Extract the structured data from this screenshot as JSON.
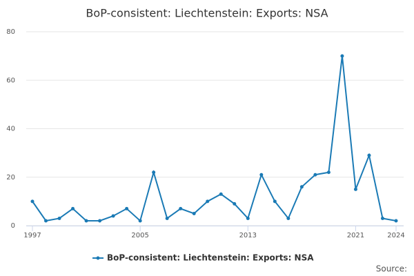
{
  "chart_data": {
    "type": "line",
    "title": "BoP-consistent: Liechtenstein: Exports: NSA",
    "x": [
      1997,
      1998,
      1999,
      2000,
      2001,
      2002,
      2003,
      2004,
      2005,
      2006,
      2007,
      2008,
      2009,
      2010,
      2011,
      2012,
      2013,
      2014,
      2015,
      2016,
      2017,
      2018,
      2019,
      2020,
      2021,
      2022,
      2023,
      2024
    ],
    "series": [
      {
        "name": "BoP-consistent: Liechtenstein: Exports: NSA",
        "color": "#1a7ab5",
        "values": [
          10,
          2,
          3,
          7,
          2,
          2,
          4,
          7,
          2,
          22,
          3,
          7,
          5,
          10,
          13,
          9,
          3,
          21,
          10,
          3,
          16,
          21,
          22,
          70,
          15,
          29,
          3,
          2
        ]
      }
    ],
    "xlim": [
      1997,
      2024
    ],
    "xticks": [
      1997,
      2005,
      2013,
      2021,
      2024
    ],
    "ylim": [
      0,
      80
    ],
    "yticks": [
      0,
      20,
      40,
      60,
      80
    ],
    "grid": true,
    "source": "Source:"
  }
}
